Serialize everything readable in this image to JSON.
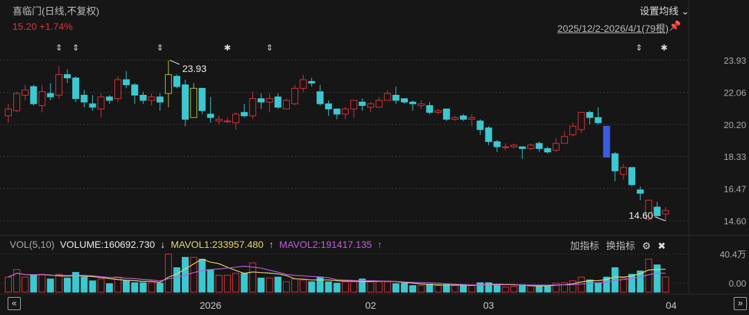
{
  "header": {
    "title": "喜临门(日线,不复权)",
    "quote": "15.20 +1.74%",
    "ma_setting": "设置均线 ⌄",
    "range": "2025/12/2-2026/4/1(79根)",
    "pin_icon": "pin-icon"
  },
  "volume_header": {
    "name": "VOL(5,10)",
    "volume": "VOLUME:160692.730",
    "volume_arrow": "↓",
    "mavol1": "MAVOL1:233957.480",
    "mavol1_arrow": "↑",
    "mavol2": "MAVOL2:191417.135",
    "mavol2_arrow": "↑",
    "add_indicator": "加指标",
    "switch_indicator": "换指标",
    "settings_icon": "gear-icon",
    "close_icon": "close-circle-icon"
  },
  "nav": {
    "prev": "«",
    "next": "»"
  },
  "colors": {
    "up": "#e0323c",
    "down": "#3cc8d0",
    "highlight": "#b8c040",
    "blue": "#3a5ce0",
    "mavol1": "#e8d870",
    "mavol2": "#c060e0",
    "bg": "#161616"
  },
  "chart_data": {
    "type": "candlestick",
    "price_axis": {
      "ticks": [
        "23.93",
        "22.06",
        "20.20",
        "18.33",
        "16.47",
        "14.60"
      ],
      "range": [
        14.6,
        23.93
      ]
    },
    "volume_axis": {
      "ticks": [
        "40.4万",
        "0.00"
      ],
      "unit": "万",
      "max": 40.4
    },
    "x_labels": [
      {
        "label": "2026",
        "index": 24
      },
      {
        "label": "02",
        "index": 43
      },
      {
        "label": "03",
        "index": 57
      },
      {
        "label": "04",
        "index": 79
      }
    ],
    "annotations": [
      {
        "text": "23.93",
        "index": 19,
        "type": "high"
      },
      {
        "text": "14.60",
        "index": 78,
        "type": "low"
      }
    ],
    "event_markers": [
      {
        "index": 6,
        "icon": "updown-arrow-icon"
      },
      {
        "index": 8,
        "icon": "updown-arrow-icon"
      },
      {
        "index": 18,
        "icon": "updown-arrow-icon"
      },
      {
        "index": 26,
        "icon": "asterisk-icon"
      },
      {
        "index": 31,
        "icon": "updown-arrow-icon"
      },
      {
        "index": 75,
        "icon": "updown-arrow-icon"
      },
      {
        "index": 78,
        "icon": "asterisk-icon"
      }
    ],
    "ohlc": [
      [
        20.7,
        21.4,
        20.3,
        21.1
      ],
      [
        21.0,
        22.1,
        20.9,
        22.0
      ],
      [
        21.9,
        22.5,
        21.6,
        22.2
      ],
      [
        22.4,
        22.5,
        21.3,
        21.4
      ],
      [
        21.3,
        22.5,
        20.9,
        22.1
      ],
      [
        22.0,
        22.6,
        21.6,
        21.8
      ],
      [
        21.9,
        23.6,
        21.7,
        23.1
      ],
      [
        23.1,
        23.4,
        22.6,
        22.9
      ],
      [
        22.9,
        23.0,
        21.5,
        21.7
      ],
      [
        21.9,
        22.2,
        21.2,
        21.5
      ],
      [
        21.4,
        21.9,
        21.0,
        21.2
      ],
      [
        21.1,
        22.0,
        20.6,
        21.8
      ],
      [
        21.8,
        21.9,
        21.4,
        21.6
      ],
      [
        21.7,
        23.0,
        21.5,
        22.8
      ],
      [
        22.8,
        23.3,
        22.3,
        22.5
      ],
      [
        22.5,
        22.6,
        21.4,
        21.9
      ],
      [
        21.9,
        22.1,
        21.4,
        21.6
      ],
      [
        21.6,
        22.0,
        21.3,
        21.8
      ],
      [
        21.8,
        22.0,
        21.0,
        21.5
      ],
      [
        22.0,
        23.93,
        21.2,
        23.1
      ],
      [
        23.0,
        23.1,
        22.3,
        22.4
      ],
      [
        22.5,
        22.8,
        20.1,
        20.5
      ],
      [
        20.6,
        22.6,
        20.6,
        22.3
      ],
      [
        22.3,
        22.3,
        20.8,
        21.0
      ],
      [
        20.8,
        21.8,
        20.3,
        20.6
      ],
      [
        20.4,
        20.7,
        20.2,
        20.5
      ],
      [
        20.4,
        20.6,
        20.3,
        20.4
      ],
      [
        20.3,
        20.9,
        19.9,
        20.8
      ],
      [
        20.9,
        21.4,
        20.6,
        20.7
      ],
      [
        20.7,
        22.1,
        20.5,
        21.7
      ],
      [
        21.7,
        22.0,
        21.1,
        21.5
      ],
      [
        21.5,
        22.0,
        20.9,
        21.7
      ],
      [
        21.8,
        22.0,
        21.1,
        21.2
      ],
      [
        21.1,
        21.7,
        21.1,
        21.6
      ],
      [
        21.4,
        22.5,
        21.3,
        22.3
      ],
      [
        22.3,
        23.1,
        22.1,
        22.8
      ],
      [
        22.7,
        22.9,
        22.4,
        22.6
      ],
      [
        22.1,
        22.5,
        21.3,
        21.4
      ],
      [
        21.4,
        21.6,
        20.7,
        21.1
      ],
      [
        21.1,
        21.1,
        20.5,
        20.8
      ],
      [
        20.8,
        21.2,
        20.5,
        21.1
      ],
      [
        21.1,
        21.6,
        20.6,
        21.6
      ],
      [
        21.5,
        21.7,
        21.0,
        21.3
      ],
      [
        21.2,
        21.5,
        20.9,
        21.4
      ],
      [
        21.2,
        21.8,
        21.2,
        21.6
      ],
      [
        21.6,
        22.2,
        21.6,
        22.0
      ],
      [
        21.9,
        22.4,
        21.4,
        21.6
      ],
      [
        21.7,
        21.7,
        21.4,
        21.5
      ],
      [
        21.5,
        21.6,
        21.0,
        21.4
      ],
      [
        21.3,
        21.6,
        21.1,
        21.4
      ],
      [
        21.3,
        21.5,
        20.8,
        20.9
      ],
      [
        20.9,
        21.1,
        20.8,
        21.0
      ],
      [
        21.1,
        21.1,
        20.4,
        20.5
      ],
      [
        20.5,
        20.7,
        20.4,
        20.6
      ],
      [
        20.7,
        20.8,
        20.4,
        20.5
      ],
      [
        20.5,
        20.8,
        20.1,
        20.6
      ],
      [
        20.4,
        20.5,
        19.6,
        19.9
      ],
      [
        20.0,
        20.1,
        19.0,
        19.2
      ],
      [
        19.2,
        19.3,
        18.6,
        18.9
      ],
      [
        18.9,
        19.1,
        18.7,
        18.9
      ],
      [
        18.9,
        19.1,
        18.8,
        19.0
      ],
      [
        18.9,
        18.9,
        18.2,
        18.8
      ],
      [
        18.8,
        19.1,
        18.7,
        19.0
      ],
      [
        19.1,
        19.2,
        18.6,
        18.8
      ],
      [
        18.8,
        18.9,
        18.5,
        18.6
      ],
      [
        18.7,
        19.4,
        18.6,
        19.1
      ],
      [
        19.1,
        19.8,
        19.1,
        19.5
      ],
      [
        19.6,
        20.3,
        19.5,
        20.1
      ],
      [
        19.9,
        20.9,
        19.7,
        20.9
      ],
      [
        20.9,
        21.0,
        20.2,
        20.6
      ],
      [
        20.6,
        21.2,
        20.2,
        20.3
      ],
      [
        20.1,
        20.1,
        18.3,
        18.3
      ],
      [
        18.5,
        18.6,
        16.9,
        17.5
      ],
      [
        17.3,
        17.9,
        17.0,
        17.7
      ],
      [
        17.7,
        17.7,
        16.6,
        16.7
      ],
      [
        16.4,
        16.6,
        15.8,
        16.2
      ],
      [
        14.7,
        15.8,
        14.6,
        15.8
      ],
      [
        15.4,
        15.7,
        14.8,
        14.9
      ],
      [
        15.0,
        15.4,
        14.6,
        15.2
      ]
    ],
    "special_candles": [
      {
        "index": 19,
        "color": "highlight"
      },
      {
        "index": 22,
        "color": "highlight"
      },
      {
        "index": 71,
        "color": "blue"
      }
    ],
    "volume": [
      16,
      24,
      16,
      18,
      19,
      14,
      19,
      15,
      21,
      16,
      12,
      14,
      9,
      16,
      12,
      10,
      10,
      10,
      9.5,
      40.4,
      26,
      37,
      37,
      35,
      24,
      18,
      18,
      20,
      20,
      31,
      15,
      15,
      16,
      11,
      14,
      13,
      11,
      16,
      11,
      9.5,
      11,
      11,
      14,
      11,
      11,
      11,
      9,
      9.5,
      7,
      7,
      8.5,
      7,
      8,
      7,
      7,
      7,
      10,
      10,
      8.5,
      5.4,
      6,
      8,
      6.6,
      6.6,
      6.6,
      9.5,
      10,
      12,
      16,
      13,
      10,
      16,
      26,
      15,
      19,
      22.5,
      35,
      29,
      16.07
    ]
  }
}
